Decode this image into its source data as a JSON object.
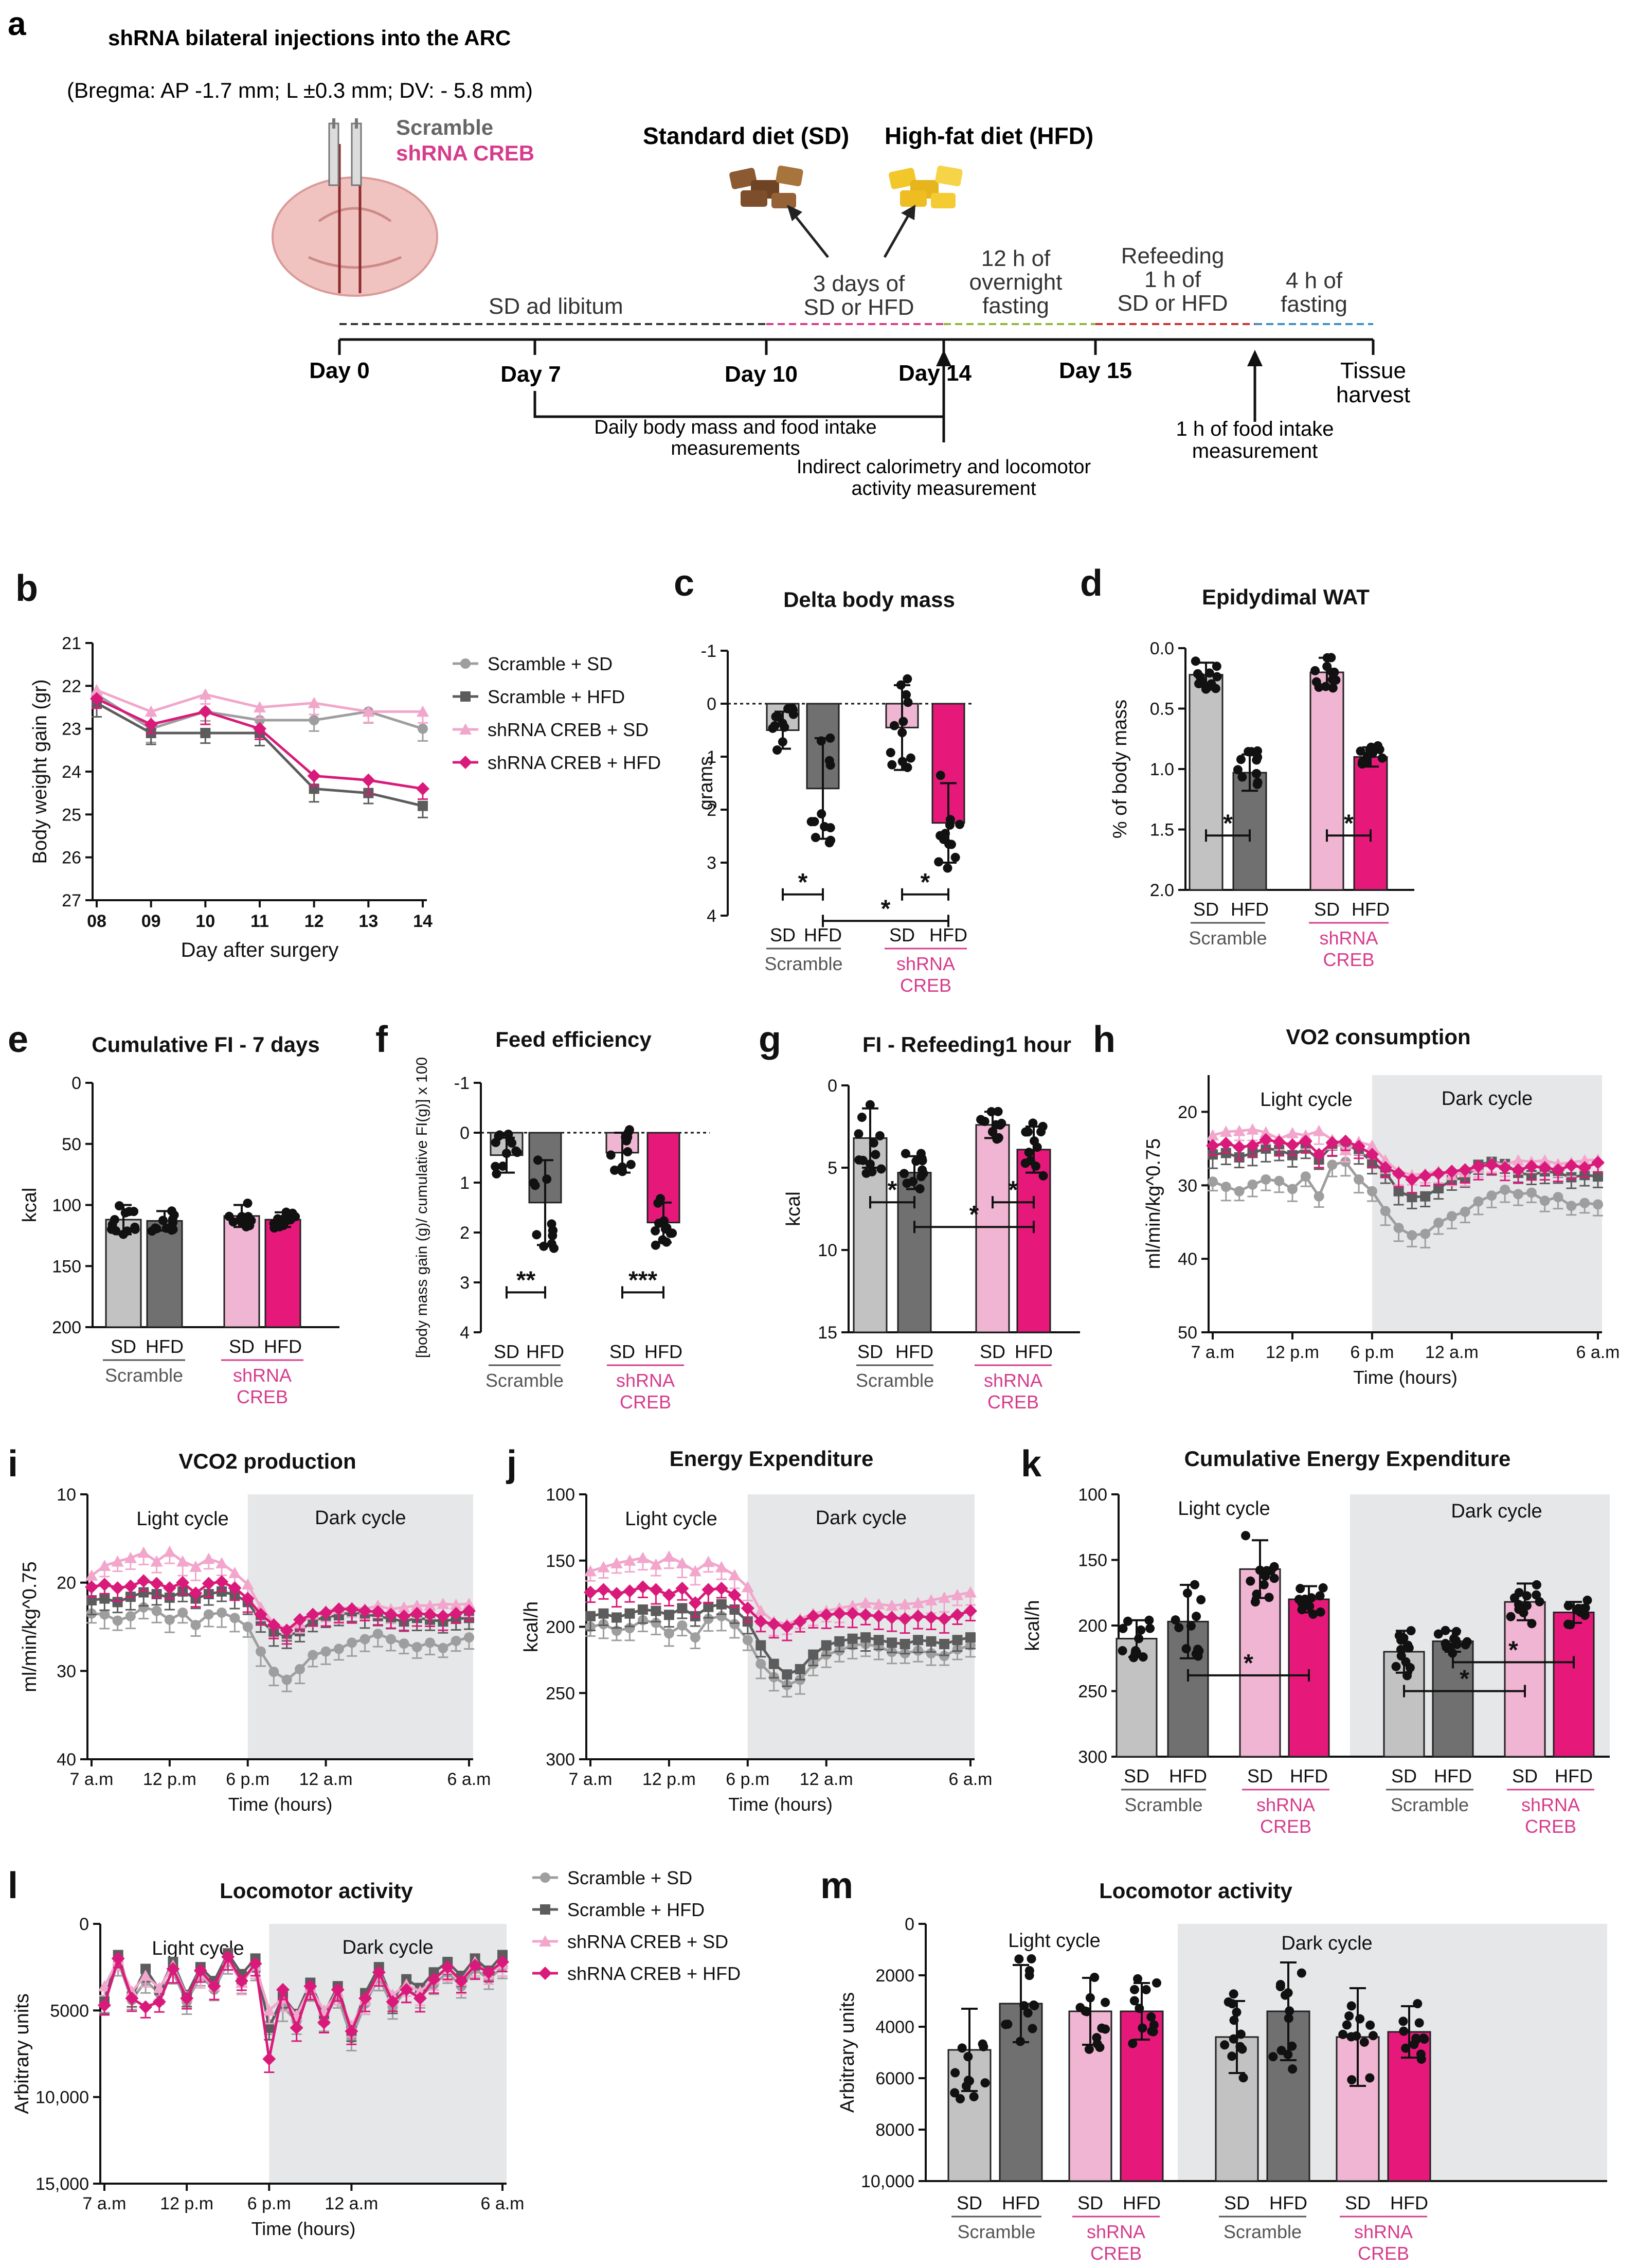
{
  "colors": {
    "sd_scr": "#c2c2c2",
    "hfd_scr": "#707070",
    "sd_sh": "#f0b5d2",
    "hfd_sh": "#e6197a",
    "pink": "#d63c8c",
    "line_scr_sd": "#9e9e9e",
    "line_scr_hfd": "#5c5c5c",
    "line_sh_sd": "#f2a6cc",
    "line_sh_hfd": "#d91a7a",
    "dark_bg": "#e6e7e9"
  },
  "panel_a": {
    "letter": "a",
    "title": "shRNA bilateral injections into the ARC",
    "bregma": "(Bregma: AP -1.7 mm; L ±0.3 mm; DV: - 5.8 mm)",
    "scramble": "Scramble",
    "shrna": "shRNA CREB",
    "sd_label": "Standard diet (SD)",
    "hfd_label": "High-fat diet (HFD)",
    "sd_ad": "SD ad libitum",
    "phase2": [
      "3 days of",
      "SD or HFD"
    ],
    "phase3": [
      "12 h of",
      "overnight",
      "fasting"
    ],
    "phase4": [
      "Refeeding",
      "1 h of",
      "SD or HFD"
    ],
    "phase5": [
      "4 h of",
      "fasting"
    ],
    "days": [
      "Day 0",
      "Day 7",
      "Day 10",
      "Day 14",
      "Day 15",
      "Tissue",
      "harvest"
    ],
    "daily": [
      "Daily body mass and food intake",
      "measurements"
    ],
    "calor": [
      "Indirect calorimetry and locomotor",
      "activity measurement"
    ],
    "fi1h": [
      "1 h of food intake",
      "measurement"
    ]
  },
  "legend": [
    "Scramble + SD",
    "Scramble + HFD",
    "shRNA CREB + SD",
    "shRNA CREB + HFD"
  ],
  "bar_labels": {
    "sd": "SD",
    "hfd": "HFD",
    "scramble": "Scramble",
    "shrna": [
      "shRNA",
      "CREB"
    ]
  },
  "star": "*",
  "star2": "**",
  "star3": "***",
  "cycles": {
    "light": "Light cycle",
    "dark": "Dark cycle"
  },
  "time_ticks": [
    "7 a.m",
    "12 p.m",
    "6 p.m",
    "12 a.m",
    "6 a.m"
  ],
  "time_label": "Time (hours)",
  "chart_data": [
    {
      "panel": "b",
      "type": "line",
      "title": "",
      "ylabel": "Body weight gain (gr)",
      "xlabel": "Day after surgery",
      "x": [
        "08",
        "09",
        "10",
        "11",
        "12",
        "13",
        "14"
      ],
      "ylim": [
        21,
        27
      ],
      "yticks": [
        "21",
        "22",
        "23",
        "24",
        "25",
        "26",
        "27"
      ],
      "series": [
        {
          "name": "Scramble + SD",
          "values": [
            22.2,
            23.0,
            22.6,
            22.8,
            22.8,
            22.6,
            23.0
          ]
        },
        {
          "name": "Scramble + HFD",
          "values": [
            22.4,
            23.1,
            23.1,
            23.1,
            24.4,
            24.5,
            24.8
          ]
        },
        {
          "name": "shRNA CREB + SD",
          "values": [
            22.1,
            22.6,
            22.2,
            22.5,
            22.4,
            22.6,
            22.6
          ]
        },
        {
          "name": "shRNA CREB + HFD",
          "values": [
            22.3,
            22.9,
            22.6,
            23.0,
            24.1,
            24.2,
            24.4
          ]
        }
      ]
    },
    {
      "panel": "c",
      "type": "bar",
      "title": "Delta body mass",
      "ylabel": "grams",
      "ylim": [
        -1,
        4
      ],
      "yticks": [
        "-1",
        "0",
        "1",
        "2",
        "3",
        "4"
      ],
      "categories": [
        "SD",
        "HFD",
        "SD",
        "HFD"
      ],
      "groups": [
        "Scramble",
        "shRNA CREB"
      ],
      "values": [
        0.5,
        1.6,
        0.45,
        2.25
      ],
      "sd": [
        0.35,
        0.95,
        0.8,
        0.75
      ]
    },
    {
      "panel": "d",
      "type": "bar",
      "title": "Epidydimal WAT",
      "ylabel": "% of body mass",
      "ylim": [
        0,
        2
      ],
      "yticks": [
        "0.0",
        "0.5",
        "1.0",
        "1.5",
        "2.0"
      ],
      "categories": [
        "SD",
        "HFD",
        "SD",
        "HFD"
      ],
      "groups": [
        "Scramble",
        "shRNA CREB"
      ],
      "values": [
        0.22,
        1.03,
        0.2,
        0.9
      ],
      "sd": [
        0.1,
        0.15,
        0.12,
        0.08
      ]
    },
    {
      "panel": "e",
      "type": "bar",
      "title": "Cumulative FI - 7 days",
      "ylabel": "kcal",
      "ylim": [
        0,
        200
      ],
      "yticks": [
        "0",
        "50",
        "100",
        "150",
        "200"
      ],
      "categories": [
        "SD",
        "HFD",
        "SD",
        "HFD"
      ],
      "groups": [
        "Scramble",
        "shRNA CREB"
      ],
      "values": [
        112,
        113,
        109,
        112
      ],
      "sd": [
        12,
        8,
        9,
        6
      ]
    },
    {
      "panel": "f",
      "type": "bar",
      "title": "Feed efficiency",
      "ylabel": "[body mass gain (g)/ cumulative FI(g)] x 100",
      "ylim": [
        -1,
        4
      ],
      "yticks": [
        "-1",
        "0",
        "1",
        "2",
        "3",
        "4"
      ],
      "categories": [
        "SD",
        "HFD",
        "SD",
        "HFD"
      ],
      "groups": [
        "Scramble",
        "shRNA CREB"
      ],
      "values": [
        0.45,
        1.4,
        0.4,
        1.8
      ],
      "sd": [
        0.35,
        0.85,
        0.4,
        0.4
      ]
    },
    {
      "panel": "g",
      "type": "bar",
      "title": "FI - Refeeding1 hour",
      "ylabel": "kcal",
      "ylim": [
        0,
        15
      ],
      "yticks": [
        "0",
        "5",
        "10",
        "15"
      ],
      "categories": [
        "SD",
        "HFD",
        "SD",
        "HFD"
      ],
      "groups": [
        "Scramble",
        "shRNA CREB"
      ],
      "values": [
        3.2,
        5.3,
        2.4,
        3.9
      ],
      "sd": [
        1.8,
        1.0,
        0.8,
        1.4
      ]
    },
    {
      "panel": "h",
      "type": "line",
      "title": "VO2 consumption",
      "ylabel": "ml/min/kg^0.75",
      "xlabel": "Time (hours)",
      "ylim": [
        15,
        50
      ],
      "yticks": [
        "20",
        "30",
        "40",
        "50"
      ],
      "series": [
        {
          "name": "Scramble + SD",
          "values": [
            29.5,
            30.2,
            30.8,
            29.9,
            29.2,
            29.4,
            30.5,
            28.8,
            31.5,
            27.2,
            26.8,
            29.2,
            30.8,
            33.5,
            35.8,
            36.8,
            36.6,
            35.1,
            34.2,
            33.6,
            32.2,
            31.4,
            30.6,
            31.2,
            31.0,
            32.1,
            31.6,
            32.8,
            32.4,
            32.6
          ]
        },
        {
          "name": "Scramble + HFD",
          "values": [
            25.8,
            25.6,
            26.2,
            25.6,
            25.0,
            25.2,
            25.9,
            25.0,
            26.5,
            24.6,
            24.4,
            25.3,
            26.8,
            28.2,
            30.8,
            31.6,
            31.5,
            30.4,
            29.3,
            28.9,
            27.2,
            26.8,
            27.1,
            28.3,
            28.6,
            28.1,
            28.3,
            28.9,
            28.6,
            28.8
          ]
        },
        {
          "name": "shRNA CREB + SD",
          "values": [
            23.2,
            22.7,
            22.6,
            22.4,
            22.8,
            23.7,
            22.9,
            23.2,
            22.6,
            23.8,
            25.2,
            24.1,
            24.6,
            26.6,
            28.1,
            28.6,
            28.4,
            28.1,
            28.6,
            28.2,
            27.6,
            26.9,
            27.2,
            26.6,
            26.8,
            26.6,
            27.1,
            26.9,
            26.6,
            26.5
          ]
        },
        {
          "name": "shRNA CREB + HFD",
          "values": [
            24.6,
            24.3,
            24.8,
            24.6,
            23.8,
            24.1,
            24.5,
            24.0,
            25.8,
            24.2,
            24.0,
            24.7,
            25.8,
            27.6,
            28.4,
            29.2,
            28.7,
            28.4,
            28.1,
            27.9,
            27.4,
            27.2,
            27.6,
            27.9,
            27.4,
            27.6,
            27.9,
            27.3,
            27.6,
            26.9
          ]
        }
      ]
    },
    {
      "panel": "i",
      "type": "line",
      "title": "VCO2 production",
      "ylabel": "ml/min/kg^0.75",
      "xlabel": "Time (hours)",
      "ylim": [
        10,
        40
      ],
      "yticks": [
        "10",
        "20",
        "30",
        "40"
      ],
      "series": [
        {
          "name": "Scramble + SD",
          "values": [
            23.5,
            23.6,
            24.3,
            23.8,
            22.8,
            23.2,
            24.2,
            23.4,
            24.8,
            23.6,
            23.4,
            24.0,
            25.0,
            27.8,
            30.1,
            31.0,
            29.8,
            28.2,
            27.8,
            27.5,
            26.8,
            26.4,
            25.8,
            26.4,
            26.9,
            27.3,
            26.8,
            27.4,
            26.6,
            26.2
          ]
        },
        {
          "name": "Scramble + HFD",
          "values": [
            22.0,
            21.8,
            22.2,
            21.6,
            21.1,
            21.3,
            21.7,
            21.0,
            21.8,
            21.3,
            21.0,
            21.4,
            22.2,
            24.3,
            25.6,
            26.1,
            25.5,
            24.3,
            23.9,
            23.7,
            23.3,
            23.6,
            23.8,
            24.1,
            24.4,
            24.0,
            24.2,
            24.4,
            24.1,
            24.0
          ]
        },
        {
          "name": "shRNA CREB + SD",
          "values": [
            19.2,
            18.1,
            17.6,
            17.2,
            16.6,
            17.6,
            16.5,
            17.6,
            18.2,
            17.3,
            17.8,
            18.9,
            20.2,
            22.8,
            24.6,
            25.3,
            24.6,
            23.6,
            23.2,
            23.0,
            22.8,
            23.0,
            22.6,
            23.0,
            22.8,
            22.6,
            22.6,
            22.4,
            22.5,
            22.4
          ]
        },
        {
          "name": "shRNA CREB + HFD",
          "values": [
            20.5,
            20.2,
            20.6,
            20.4,
            19.8,
            20.1,
            20.6,
            20.0,
            21.2,
            20.1,
            19.9,
            20.6,
            21.8,
            23.6,
            24.8,
            25.4,
            24.2,
            23.6,
            23.4,
            23.0,
            23.0,
            23.2,
            23.3,
            23.6,
            23.8,
            23.5,
            23.6,
            23.8,
            23.5,
            23.2
          ]
        }
      ]
    },
    {
      "panel": "j",
      "type": "line",
      "title": "Energy Expenditure",
      "ylabel": "kcal/h",
      "xlabel": "Time (hours)",
      "ylim": [
        100,
        300
      ],
      "yticks": [
        "100",
        "150",
        "200",
        "250",
        "300"
      ],
      "series": [
        {
          "name": "Scramble + SD",
          "values": [
            200,
            198,
            203,
            201,
            195,
            197,
            205,
            199,
            208,
            194,
            192,
            198,
            210,
            228,
            238,
            244,
            240,
            228,
            221,
            218,
            214,
            213,
            215,
            219,
            220,
            218,
            220,
            222,
            217,
            214
          ]
        },
        {
          "name": "Scramble + HFD",
          "values": [
            192,
            190,
            193,
            190,
            187,
            188,
            191,
            186,
            192,
            185,
            183,
            187,
            196,
            214,
            228,
            236,
            232,
            221,
            214,
            211,
            209,
            208,
            210,
            212,
            213,
            210,
            211,
            213,
            210,
            208
          ]
        },
        {
          "name": "shRNA CREB + SD",
          "values": [
            158,
            155,
            152,
            150,
            148,
            153,
            147,
            152,
            158,
            151,
            155,
            161,
            170,
            188,
            196,
            198,
            194,
            190,
            188,
            186,
            184,
            182,
            183,
            184,
            183,
            182,
            180,
            178,
            176,
            174
          ]
        },
        {
          "name": "shRNA CREB + HFD",
          "values": [
            174,
            172,
            175,
            173,
            170,
            172,
            176,
            171,
            182,
            172,
            171,
            176,
            186,
            196,
            198,
            200,
            196,
            192,
            191,
            190,
            190,
            191,
            192,
            193,
            194,
            192,
            193,
            194,
            191,
            188
          ]
        }
      ]
    },
    {
      "panel": "k",
      "type": "bar",
      "title": "Cumulative Energy Expenditure",
      "ylabel": "kcal/h",
      "ylim": [
        100,
        300
      ],
      "yticks": [
        "100",
        "150",
        "200",
        "250",
        "300"
      ],
      "categories": [
        "SD",
        "HFD",
        "SD",
        "HFD",
        "SD",
        "HFD",
        "SD",
        "HFD"
      ],
      "groups": [
        "Scramble",
        "shRNA CREB",
        "Scramble",
        "shRNA CREB"
      ],
      "values": [
        210,
        197,
        157,
        180,
        220,
        212,
        182,
        190
      ],
      "sd": [
        14,
        28,
        22,
        10,
        16,
        8,
        14,
        8
      ]
    },
    {
      "panel": "l",
      "type": "line",
      "title": "Locomotor activity",
      "ylabel": "Arbitrary units",
      "xlabel": "Time (hours)",
      "ylim": [
        0,
        15000
      ],
      "yticks": [
        "0",
        "5000",
        "10,000",
        "15,000"
      ],
      "series": [
        {
          "name": "Scramble + SD",
          "values": [
            4600,
            2200,
            4400,
            3300,
            4000,
            2800,
            4500,
            3000,
            3800,
            2200,
            3200,
            2500,
            5800,
            4800,
            5600,
            3800,
            5400,
            4200,
            6600,
            4600,
            3100,
            4800,
            3800,
            4200,
            3500,
            2800,
            3600,
            2600,
            3200,
            2500
          ]
        },
        {
          "name": "Scramble + HFD",
          "values": [
            4400,
            1800,
            4200,
            2600,
            3800,
            2200,
            4100,
            2500,
            3300,
            1700,
            2900,
            2000,
            6000,
            4200,
            5200,
            3400,
            5200,
            3600,
            6200,
            4000,
            2500,
            4400,
            3200,
            3700,
            2800,
            2200,
            3000,
            2000,
            2700,
            1800
          ]
        },
        {
          "name": "shRNA CREB + SD",
          "values": [
            3600,
            2100,
            3900,
            3000,
            3700,
            2400,
            4200,
            2900,
            3600,
            2100,
            3400,
            2400,
            5000,
            4300,
            5300,
            3700,
            5000,
            4000,
            5900,
            4400,
            3000,
            4100,
            3500,
            3900,
            3200,
            2600,
            3300,
            2200,
            2900,
            2300
          ]
        },
        {
          "name": "shRNA CREB + HFD",
          "values": [
            4700,
            2000,
            4300,
            4800,
            4500,
            2600,
            4300,
            2700,
            3600,
            1900,
            3300,
            2300,
            7800,
            3800,
            6000,
            3600,
            5700,
            3800,
            6200,
            4300,
            2800,
            4500,
            3800,
            4300,
            3200,
            2500,
            3300,
            2400,
            2800,
            2200
          ]
        }
      ]
    },
    {
      "panel": "m",
      "type": "bar",
      "title": "Locomotor activity",
      "ylabel": "Arbitrary units",
      "ylim": [
        0,
        10000
      ],
      "yticks": [
        "0",
        "2000",
        "4000",
        "6000",
        "8000",
        "10,000"
      ],
      "categories": [
        "SD",
        "HFD",
        "SD",
        "HFD",
        "SD",
        "HFD",
        "SD",
        "HFD"
      ],
      "groups": [
        "Scramble",
        "shRNA CREB",
        "Scramble",
        "shRNA CREB"
      ],
      "values": [
        4900,
        3100,
        3400,
        3400,
        4400,
        3400,
        4400,
        4200
      ],
      "sd": [
        1600,
        1500,
        1300,
        1100,
        1400,
        1900,
        1900,
        1000
      ]
    }
  ]
}
